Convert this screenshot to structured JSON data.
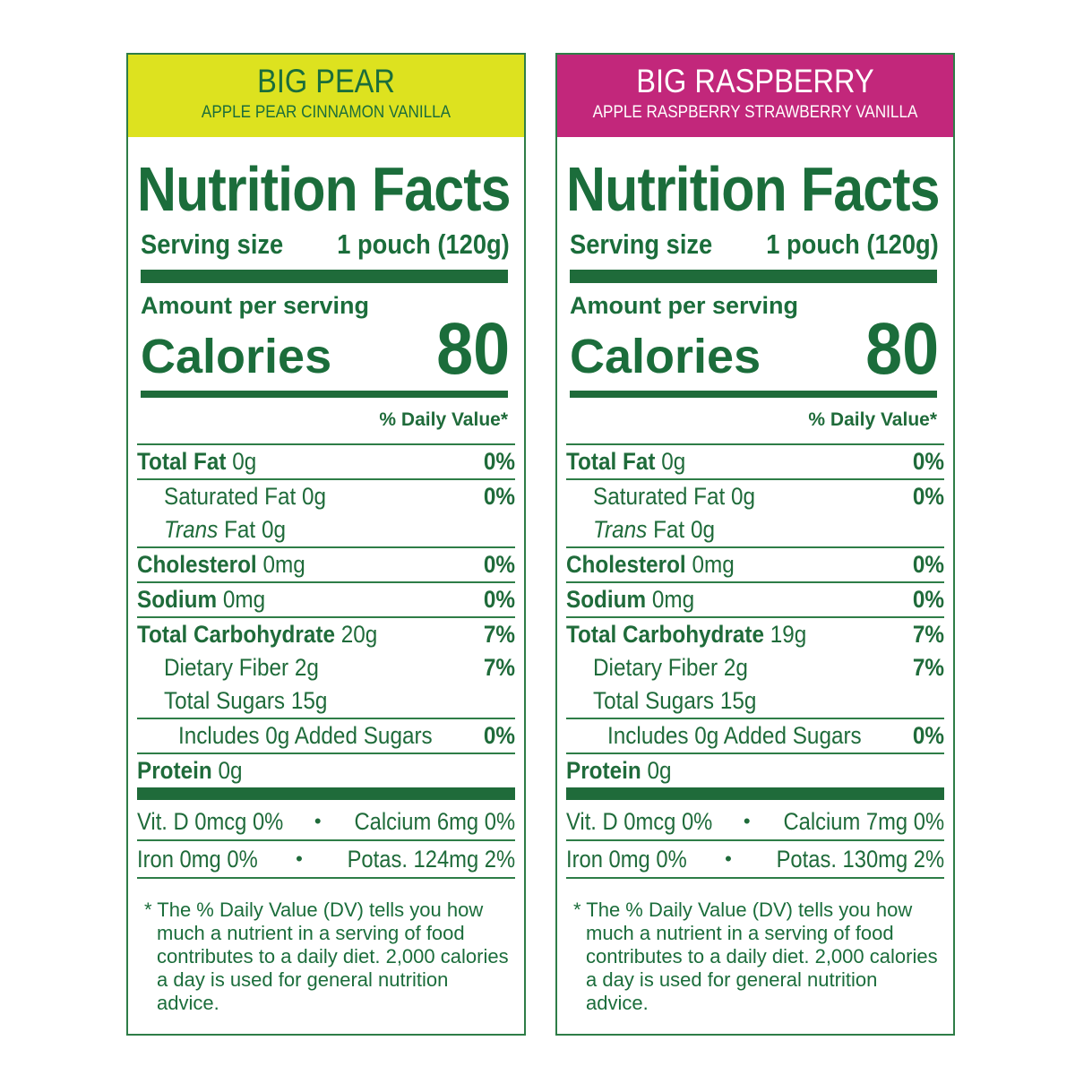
{
  "panels": [
    {
      "header_title": "BIG PEAR",
      "header_subtitle": "APPLE PEAR CINNAMON VANILLA",
      "header_bg": "#dde21f",
      "title": "Nutrition Facts",
      "serving_label": "Serving size",
      "serving_value": "1 pouch (120g)",
      "amount_label": "Amount per serving",
      "calories_label": "Calories",
      "calories_value": "80",
      "dv_label": "% Daily Value*",
      "total_fat": {
        "name": "Total Fat",
        "amount": "0g",
        "dv": "0%"
      },
      "sat_fat": {
        "name": "Saturated Fat 0g",
        "dv": "0%"
      },
      "trans_fat": {
        "italic": "Trans",
        "rest": "Fat 0g"
      },
      "cholesterol": {
        "name": "Cholesterol",
        "amount": "0mg",
        "dv": "0%"
      },
      "sodium": {
        "name": "Sodium",
        "amount": "0mg",
        "dv": "0%"
      },
      "carb": {
        "name": "Total Carbohydrate",
        "amount": "20g",
        "dv": "7%"
      },
      "fiber": {
        "name": "Dietary Fiber 2g",
        "dv": "7%"
      },
      "sugars": {
        "name": "Total Sugars 15g"
      },
      "added_sugars": {
        "name": "Includes 0g Added Sugars",
        "dv": "0%"
      },
      "protein": {
        "name": "Protein",
        "amount": "0g"
      },
      "vit_d": "Vit. D 0mcg 0%",
      "calcium": "Calcium 6mg 0%",
      "iron": "Iron 0mg 0%",
      "potas": "Potas. 124mg 2%",
      "bullet": "•",
      "foot_1": "* The % Daily Value (DV) tells you how",
      "foot_2": "much a nutrient in a serving of food",
      "foot_3": "contributes to a daily diet. 2,000 calories",
      "foot_4": "a day is used for general nutrition advice."
    },
    {
      "header_title": "BIG RASPBERRY",
      "header_subtitle": "APPLE RASPBERRY STRAWBERRY VANILLA",
      "header_bg": "#c2277b",
      "title": "Nutrition Facts",
      "serving_label": "Serving size",
      "serving_value": "1 pouch (120g)",
      "amount_label": "Amount per serving",
      "calories_label": "Calories",
      "calories_value": "80",
      "dv_label": "% Daily Value*",
      "total_fat": {
        "name": "Total Fat",
        "amount": "0g",
        "dv": "0%"
      },
      "sat_fat": {
        "name": "Saturated Fat 0g",
        "dv": "0%"
      },
      "trans_fat": {
        "italic": "Trans",
        "rest": "Fat 0g"
      },
      "cholesterol": {
        "name": "Cholesterol",
        "amount": "0mg",
        "dv": "0%"
      },
      "sodium": {
        "name": "Sodium",
        "amount": "0mg",
        "dv": "0%"
      },
      "carb": {
        "name": "Total Carbohydrate",
        "amount": "19g",
        "dv": "7%"
      },
      "fiber": {
        "name": "Dietary Fiber 2g",
        "dv": "7%"
      },
      "sugars": {
        "name": "Total Sugars 15g"
      },
      "added_sugars": {
        "name": "Includes 0g Added Sugars",
        "dv": "0%"
      },
      "protein": {
        "name": "Protein",
        "amount": "0g"
      },
      "vit_d": "Vit. D 0mcg 0%",
      "calcium": "Calcium 7mg 0%",
      "iron": "Iron 0mg 0%",
      "potas": "Potas. 130mg 2%",
      "bullet": "•",
      "foot_1": "* The % Daily Value (DV) tells you how",
      "foot_2": "much a nutrient in a serving of food",
      "foot_3": "contributes to a daily diet. 2,000 calories",
      "foot_4": "a day is used for general nutrition advice."
    }
  ],
  "colors": {
    "text_green": "#1b6d3b",
    "rule_green": "#1f6b3a"
  }
}
